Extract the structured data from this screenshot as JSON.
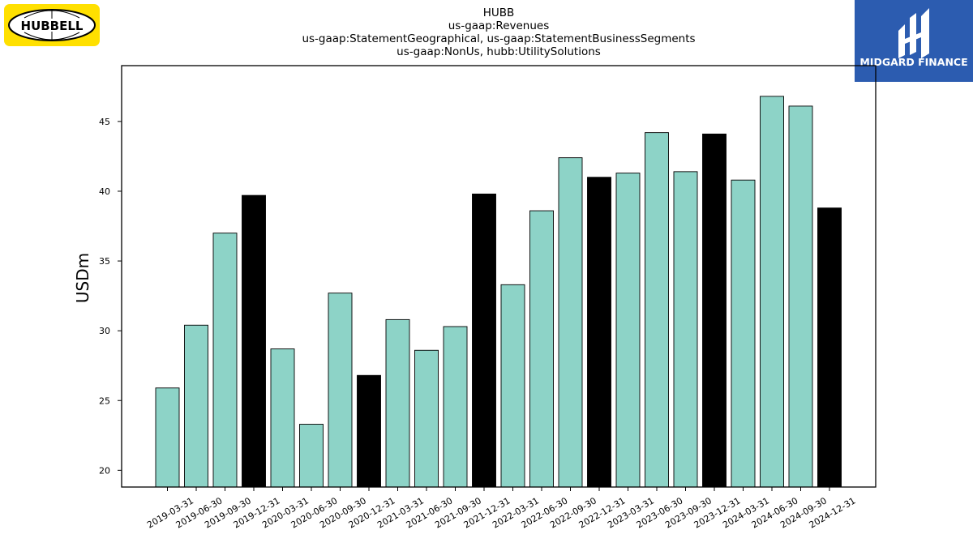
{
  "logos": {
    "left": {
      "text": "HUBBELL",
      "bg_color": "#ffe000"
    },
    "right": {
      "text": "MIDGARD FINANCE",
      "bg_color": "#2c5cb0"
    }
  },
  "chart_data": {
    "type": "bar",
    "title_lines": [
      "HUBB",
      "us-gaap:Revenues",
      "us-gaap:StatementGeographical, us-gaap:StatementBusinessSegments",
      "us-gaap:NonUs, hubb:UtilitySolutions"
    ],
    "xlabel": "",
    "ylabel": "USDm",
    "ylim": [
      18.8,
      49.0
    ],
    "yticks": [
      20,
      25,
      30,
      35,
      40,
      45
    ],
    "grid": false,
    "colors": {
      "quarter": "#8dd3c7",
      "year_end": "#000000",
      "edge": "#000000"
    },
    "categories": [
      "2019-03-31",
      "2019-06-30",
      "2019-09-30",
      "2019-12-31",
      "2020-03-31",
      "2020-06-30",
      "2020-09-30",
      "2020-12-31",
      "2021-03-31",
      "2021-06-30",
      "2021-09-30",
      "2021-12-31",
      "2022-03-31",
      "2022-06-30",
      "2022-09-30",
      "2022-12-31",
      "2023-03-31",
      "2023-06-30",
      "2023-09-30",
      "2023-12-31",
      "2024-03-31",
      "2024-06-30",
      "2024-09-30",
      "2024-12-31"
    ],
    "values": [
      25.9,
      30.4,
      37.0,
      39.7,
      28.7,
      23.3,
      32.7,
      26.8,
      30.8,
      28.6,
      30.3,
      39.8,
      33.3,
      38.6,
      42.4,
      41.0,
      41.3,
      44.2,
      41.4,
      44.1,
      40.8,
      46.8,
      46.1,
      38.8
    ],
    "year_end_flags": [
      false,
      false,
      false,
      true,
      false,
      false,
      false,
      true,
      false,
      false,
      false,
      true,
      false,
      false,
      false,
      true,
      false,
      false,
      false,
      true,
      false,
      false,
      false,
      true
    ]
  }
}
